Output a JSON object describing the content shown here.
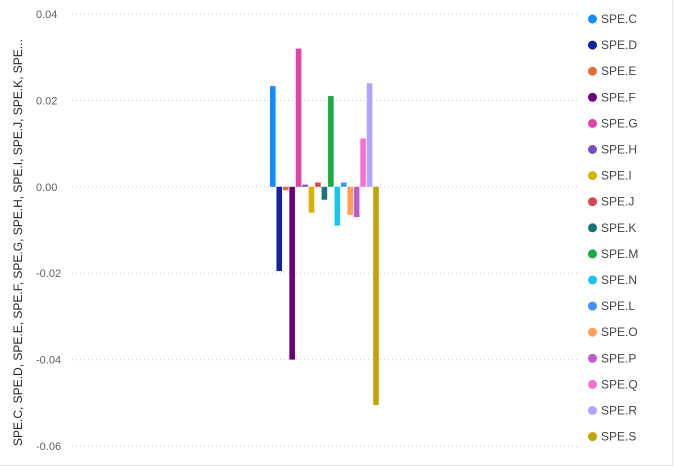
{
  "chart_data": {
    "type": "bar",
    "title": "",
    "xlabel": "",
    "ylabel": "SPE.C, SPE.D, SPE.E, SPE.F, SPE.G, SPE.H, SPE.I, SPE.J, SPE.K, SPE...",
    "ylim": [
      -0.06,
      0.04
    ],
    "yticks": [
      "0.04",
      "0.02",
      "0.00",
      "-0.02",
      "-0.04",
      "-0.06"
    ],
    "ytick_values": [
      0.04,
      0.02,
      0.0,
      -0.02,
      -0.04,
      -0.06
    ],
    "grid": true,
    "legend_position": "right",
    "series": [
      {
        "name": "SPE.C",
        "value": 0.0233,
        "color": "#118DFF"
      },
      {
        "name": "SPE.D",
        "value": -0.0195,
        "color": "#12239E"
      },
      {
        "name": "SPE.E",
        "value": -0.0008,
        "color": "#E66C37"
      },
      {
        "name": "SPE.F",
        "value": -0.04,
        "color": "#6B007B"
      },
      {
        "name": "SPE.G",
        "value": 0.032,
        "color": "#E044A7"
      },
      {
        "name": "SPE.H",
        "value": 0.0005,
        "color": "#744EC2"
      },
      {
        "name": "SPE.I",
        "value": -0.006,
        "color": "#D9B300"
      },
      {
        "name": "SPE.J",
        "value": 0.001,
        "color": "#D64550"
      },
      {
        "name": "SPE.K",
        "value": -0.003,
        "color": "#197278"
      },
      {
        "name": "SPE.M",
        "value": 0.021,
        "color": "#1AAB40"
      },
      {
        "name": "SPE.N",
        "value": -0.009,
        "color": "#15C6F4"
      },
      {
        "name": "SPE.L",
        "value": 0.001,
        "color": "#4092FF"
      },
      {
        "name": "SPE.O",
        "value": -0.0065,
        "color": "#FFA058"
      },
      {
        "name": "SPE.P",
        "value": -0.007,
        "color": "#BE5DC9"
      },
      {
        "name": "SPE.Q",
        "value": 0.0112,
        "color": "#F472D0"
      },
      {
        "name": "SPE.R",
        "value": 0.024,
        "color": "#B5A1FF"
      },
      {
        "name": "SPE.S",
        "value": -0.0505,
        "color": "#C4A200"
      }
    ]
  }
}
